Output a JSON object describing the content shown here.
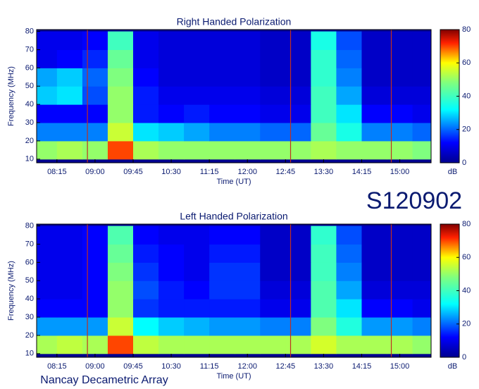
{
  "header": {
    "id": "S120902"
  },
  "footer": {
    "text": "Nancay Decametric Array"
  },
  "chart_data": [
    {
      "type": "heatmap",
      "title": "Right Handed Polarization",
      "xlabel": "Time (UT)",
      "ylabel": "Frequency (MHz)",
      "zlabel": "dB",
      "x": [
        480,
        510,
        540,
        570,
        600,
        630,
        660,
        690,
        720,
        750,
        780,
        810,
        840,
        870,
        900,
        930
      ],
      "y": [
        15,
        25,
        35,
        45,
        55,
        65,
        75
      ],
      "values": [
        [
          50,
          52,
          50,
          70,
          52,
          50,
          50,
          50,
          50,
          50,
          50,
          52,
          50,
          50,
          50,
          48
        ],
        [
          22,
          22,
          22,
          55,
          30,
          28,
          25,
          22,
          22,
          20,
          20,
          45,
          35,
          22,
          22,
          20
        ],
        [
          12,
          12,
          12,
          50,
          14,
          12,
          14,
          12,
          12,
          10,
          10,
          40,
          30,
          12,
          12,
          10
        ],
        [
          28,
          30,
          18,
          50,
          14,
          10,
          10,
          10,
          10,
          8,
          8,
          40,
          25,
          8,
          8,
          8
        ],
        [
          25,
          28,
          20,
          48,
          12,
          8,
          8,
          8,
          8,
          6,
          6,
          38,
          22,
          6,
          6,
          6
        ],
        [
          10,
          12,
          15,
          45,
          10,
          8,
          8,
          8,
          8,
          6,
          6,
          38,
          20,
          6,
          6,
          6
        ],
        [
          10,
          10,
          12,
          40,
          10,
          8,
          8,
          8,
          8,
          6,
          6,
          35,
          18,
          6,
          6,
          6
        ]
      ],
      "xlim": [
        471,
        937
      ],
      "ylim": [
        8,
        81
      ],
      "zlim": [
        0,
        80
      ],
      "xticks": [
        {
          "value": 495,
          "label": "08:15"
        },
        {
          "value": 540,
          "label": "09:00"
        },
        {
          "value": 585,
          "label": "09:45"
        },
        {
          "value": 630,
          "label": "10:30"
        },
        {
          "value": 675,
          "label": "11:15"
        },
        {
          "value": 720,
          "label": "12:00"
        },
        {
          "value": 765,
          "label": "12:45"
        },
        {
          "value": 810,
          "label": "13:30"
        },
        {
          "value": 855,
          "label": "14:15"
        },
        {
          "value": 900,
          "label": "15:00"
        }
      ],
      "yticks": [
        10,
        20,
        30,
        40,
        50,
        60,
        70,
        80
      ],
      "zticks": [
        0,
        20,
        40,
        60,
        80
      ],
      "vlines": [
        531,
        771,
        890
      ],
      "vline_color": "#c03020"
    },
    {
      "type": "heatmap",
      "title": "Left Handed Polarization",
      "xlabel": "Time (UT)",
      "ylabel": "Frequency (MHz)",
      "zlabel": "dB",
      "x": [
        480,
        510,
        540,
        570,
        600,
        630,
        660,
        690,
        720,
        750,
        780,
        810,
        840,
        870,
        900,
        930
      ],
      "y": [
        15,
        25,
        35,
        45,
        55,
        65,
        75
      ],
      "values": [
        [
          52,
          54,
          52,
          70,
          54,
          52,
          52,
          52,
          52,
          52,
          52,
          56,
          52,
          52,
          52,
          50
        ],
        [
          24,
          24,
          24,
          55,
          32,
          28,
          26,
          24,
          24,
          22,
          22,
          48,
          36,
          24,
          24,
          22
        ],
        [
          12,
          12,
          12,
          50,
          16,
          14,
          14,
          14,
          14,
          10,
          10,
          42,
          30,
          12,
          12,
          10
        ],
        [
          10,
          10,
          12,
          50,
          18,
          14,
          12,
          16,
          16,
          8,
          8,
          42,
          25,
          8,
          8,
          8
        ],
        [
          10,
          10,
          12,
          48,
          16,
          12,
          10,
          16,
          16,
          6,
          6,
          40,
          22,
          6,
          6,
          6
        ],
        [
          10,
          10,
          12,
          45,
          14,
          12,
          10,
          14,
          14,
          6,
          6,
          40,
          20,
          6,
          6,
          6
        ],
        [
          10,
          10,
          12,
          42,
          12,
          10,
          10,
          12,
          12,
          6,
          6,
          38,
          18,
          6,
          6,
          6
        ]
      ],
      "xlim": [
        471,
        937
      ],
      "ylim": [
        8,
        81
      ],
      "zlim": [
        0,
        80
      ],
      "xticks": [
        {
          "value": 495,
          "label": "08:15"
        },
        {
          "value": 540,
          "label": "09:00"
        },
        {
          "value": 585,
          "label": "09:45"
        },
        {
          "value": 630,
          "label": "10:30"
        },
        {
          "value": 675,
          "label": "11:15"
        },
        {
          "value": 720,
          "label": "12:00"
        },
        {
          "value": 765,
          "label": "12:45"
        },
        {
          "value": 810,
          "label": "13:30"
        },
        {
          "value": 855,
          "label": "14:15"
        },
        {
          "value": 900,
          "label": "15:00"
        }
      ],
      "yticks": [
        10,
        20,
        30,
        40,
        50,
        60,
        70,
        80
      ],
      "zticks": [
        0,
        20,
        40,
        60,
        80
      ],
      "vlines": [
        531,
        771,
        890
      ],
      "vline_color": "#c03020"
    }
  ]
}
